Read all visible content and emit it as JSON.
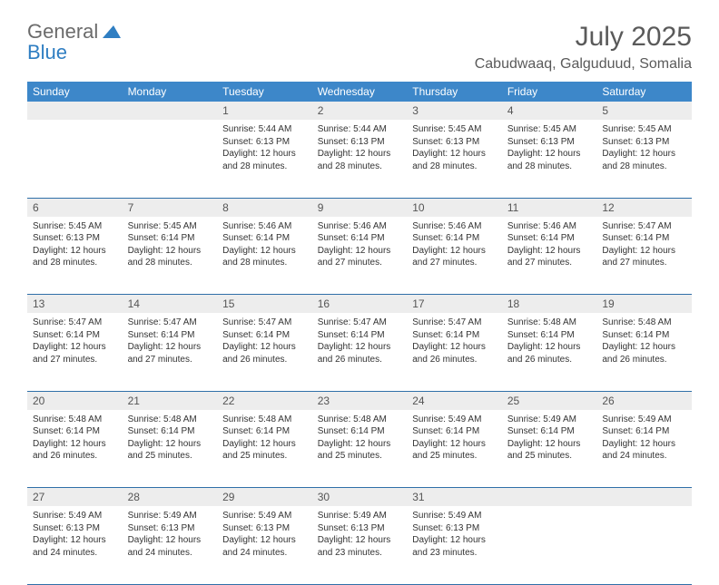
{
  "logo": {
    "line1": "General",
    "line2": "Blue"
  },
  "title": "July 2025",
  "location": "Cabudwaaq, Galguduud, Somalia",
  "colors": {
    "header_bg": "#3d87c9",
    "header_text": "#ffffff",
    "daynum_bg": "#ededed",
    "border": "#2f6fa8",
    "logo_gray": "#6b6b6b",
    "logo_blue": "#2f7ec2"
  },
  "weekdays": [
    "Sunday",
    "Monday",
    "Tuesday",
    "Wednesday",
    "Thursday",
    "Friday",
    "Saturday"
  ],
  "weeks": [
    {
      "nums": [
        "",
        "",
        "1",
        "2",
        "3",
        "4",
        "5"
      ],
      "cells": [
        null,
        null,
        {
          "sunrise": "Sunrise: 5:44 AM",
          "sunset": "Sunset: 6:13 PM",
          "daylight": "Daylight: 12 hours and 28 minutes."
        },
        {
          "sunrise": "Sunrise: 5:44 AM",
          "sunset": "Sunset: 6:13 PM",
          "daylight": "Daylight: 12 hours and 28 minutes."
        },
        {
          "sunrise": "Sunrise: 5:45 AM",
          "sunset": "Sunset: 6:13 PM",
          "daylight": "Daylight: 12 hours and 28 minutes."
        },
        {
          "sunrise": "Sunrise: 5:45 AM",
          "sunset": "Sunset: 6:13 PM",
          "daylight": "Daylight: 12 hours and 28 minutes."
        },
        {
          "sunrise": "Sunrise: 5:45 AM",
          "sunset": "Sunset: 6:13 PM",
          "daylight": "Daylight: 12 hours and 28 minutes."
        }
      ]
    },
    {
      "nums": [
        "6",
        "7",
        "8",
        "9",
        "10",
        "11",
        "12"
      ],
      "cells": [
        {
          "sunrise": "Sunrise: 5:45 AM",
          "sunset": "Sunset: 6:13 PM",
          "daylight": "Daylight: 12 hours and 28 minutes."
        },
        {
          "sunrise": "Sunrise: 5:45 AM",
          "sunset": "Sunset: 6:14 PM",
          "daylight": "Daylight: 12 hours and 28 minutes."
        },
        {
          "sunrise": "Sunrise: 5:46 AM",
          "sunset": "Sunset: 6:14 PM",
          "daylight": "Daylight: 12 hours and 28 minutes."
        },
        {
          "sunrise": "Sunrise: 5:46 AM",
          "sunset": "Sunset: 6:14 PM",
          "daylight": "Daylight: 12 hours and 27 minutes."
        },
        {
          "sunrise": "Sunrise: 5:46 AM",
          "sunset": "Sunset: 6:14 PM",
          "daylight": "Daylight: 12 hours and 27 minutes."
        },
        {
          "sunrise": "Sunrise: 5:46 AM",
          "sunset": "Sunset: 6:14 PM",
          "daylight": "Daylight: 12 hours and 27 minutes."
        },
        {
          "sunrise": "Sunrise: 5:47 AM",
          "sunset": "Sunset: 6:14 PM",
          "daylight": "Daylight: 12 hours and 27 minutes."
        }
      ]
    },
    {
      "nums": [
        "13",
        "14",
        "15",
        "16",
        "17",
        "18",
        "19"
      ],
      "cells": [
        {
          "sunrise": "Sunrise: 5:47 AM",
          "sunset": "Sunset: 6:14 PM",
          "daylight": "Daylight: 12 hours and 27 minutes."
        },
        {
          "sunrise": "Sunrise: 5:47 AM",
          "sunset": "Sunset: 6:14 PM",
          "daylight": "Daylight: 12 hours and 27 minutes."
        },
        {
          "sunrise": "Sunrise: 5:47 AM",
          "sunset": "Sunset: 6:14 PM",
          "daylight": "Daylight: 12 hours and 26 minutes."
        },
        {
          "sunrise": "Sunrise: 5:47 AM",
          "sunset": "Sunset: 6:14 PM",
          "daylight": "Daylight: 12 hours and 26 minutes."
        },
        {
          "sunrise": "Sunrise: 5:47 AM",
          "sunset": "Sunset: 6:14 PM",
          "daylight": "Daylight: 12 hours and 26 minutes."
        },
        {
          "sunrise": "Sunrise: 5:48 AM",
          "sunset": "Sunset: 6:14 PM",
          "daylight": "Daylight: 12 hours and 26 minutes."
        },
        {
          "sunrise": "Sunrise: 5:48 AM",
          "sunset": "Sunset: 6:14 PM",
          "daylight": "Daylight: 12 hours and 26 minutes."
        }
      ]
    },
    {
      "nums": [
        "20",
        "21",
        "22",
        "23",
        "24",
        "25",
        "26"
      ],
      "cells": [
        {
          "sunrise": "Sunrise: 5:48 AM",
          "sunset": "Sunset: 6:14 PM",
          "daylight": "Daylight: 12 hours and 26 minutes."
        },
        {
          "sunrise": "Sunrise: 5:48 AM",
          "sunset": "Sunset: 6:14 PM",
          "daylight": "Daylight: 12 hours and 25 minutes."
        },
        {
          "sunrise": "Sunrise: 5:48 AM",
          "sunset": "Sunset: 6:14 PM",
          "daylight": "Daylight: 12 hours and 25 minutes."
        },
        {
          "sunrise": "Sunrise: 5:48 AM",
          "sunset": "Sunset: 6:14 PM",
          "daylight": "Daylight: 12 hours and 25 minutes."
        },
        {
          "sunrise": "Sunrise: 5:49 AM",
          "sunset": "Sunset: 6:14 PM",
          "daylight": "Daylight: 12 hours and 25 minutes."
        },
        {
          "sunrise": "Sunrise: 5:49 AM",
          "sunset": "Sunset: 6:14 PM",
          "daylight": "Daylight: 12 hours and 25 minutes."
        },
        {
          "sunrise": "Sunrise: 5:49 AM",
          "sunset": "Sunset: 6:14 PM",
          "daylight": "Daylight: 12 hours and 24 minutes."
        }
      ]
    },
    {
      "nums": [
        "27",
        "28",
        "29",
        "30",
        "31",
        "",
        ""
      ],
      "cells": [
        {
          "sunrise": "Sunrise: 5:49 AM",
          "sunset": "Sunset: 6:13 PM",
          "daylight": "Daylight: 12 hours and 24 minutes."
        },
        {
          "sunrise": "Sunrise: 5:49 AM",
          "sunset": "Sunset: 6:13 PM",
          "daylight": "Daylight: 12 hours and 24 minutes."
        },
        {
          "sunrise": "Sunrise: 5:49 AM",
          "sunset": "Sunset: 6:13 PM",
          "daylight": "Daylight: 12 hours and 24 minutes."
        },
        {
          "sunrise": "Sunrise: 5:49 AM",
          "sunset": "Sunset: 6:13 PM",
          "daylight": "Daylight: 12 hours and 23 minutes."
        },
        {
          "sunrise": "Sunrise: 5:49 AM",
          "sunset": "Sunset: 6:13 PM",
          "daylight": "Daylight: 12 hours and 23 minutes."
        },
        null,
        null
      ]
    }
  ]
}
